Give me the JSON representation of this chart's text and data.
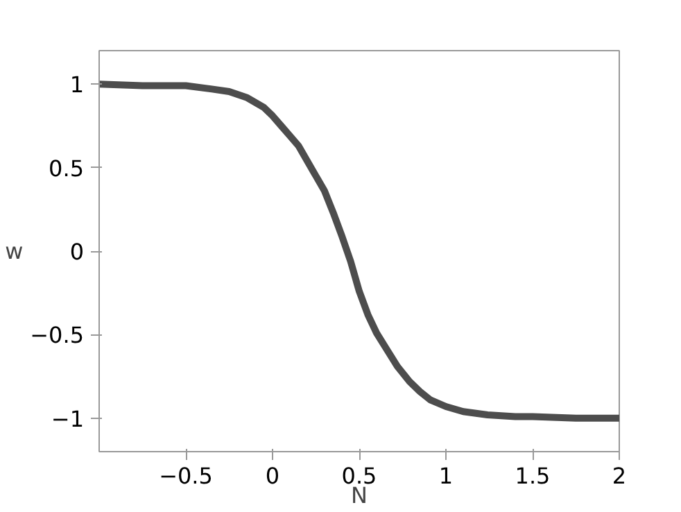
{
  "chart_data": {
    "type": "line",
    "xlabel": "N",
    "ylabel": "w",
    "series": [
      {
        "color": "#4d4d4d",
        "x": [
          -1,
          -0.75,
          -0.5,
          -0.35,
          -0.25,
          -0.15,
          -0.05,
          0,
          0.05,
          0.1,
          0.15,
          0.2,
          0.25,
          0.3,
          0.35,
          0.4,
          0.45,
          0.5,
          0.55,
          0.6,
          0.66,
          0.72,
          0.79,
          0.85,
          0.91,
          1.0,
          1.1,
          1.24,
          1.4,
          1.5,
          1.75,
          2
        ],
        "values": [
          1,
          0.99,
          0.99,
          0.97,
          0.955,
          0.92,
          0.86,
          0.81,
          0.75,
          0.69,
          0.63,
          0.54,
          0.45,
          0.36,
          0.23,
          0.09,
          -0.06,
          -0.24,
          -0.38,
          -0.49,
          -0.59,
          -0.69,
          -0.78,
          -0.84,
          -0.89,
          -0.93,
          -0.96,
          -0.98,
          -0.99,
          -0.99,
          -1,
          -1
        ]
      }
    ],
    "xlim": [
      -1,
      2
    ],
    "ylim": [
      -1.2,
      1.2
    ],
    "xticks": [
      {
        "value": -0.5,
        "label": "−0.5"
      },
      0,
      0.5,
      1,
      1.5,
      2
    ],
    "yticks": [
      {
        "value": -1,
        "label": "−1"
      },
      {
        "value": -0.5,
        "label": "−0.5"
      },
      0,
      0.5,
      1
    ],
    "grid": false,
    "marker": "none",
    "line_style": "solid"
  }
}
